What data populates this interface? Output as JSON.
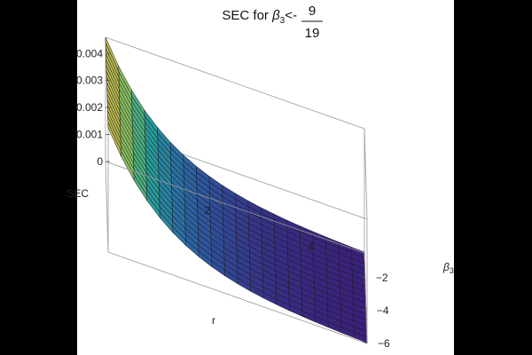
{
  "chart_data": {
    "type": "surface3d",
    "title": {
      "prefix": "SEC for ",
      "symbol": "β",
      "subscript": "3",
      "relation": "<-",
      "numerator": "9",
      "denominator": "19"
    },
    "z_axis": {
      "label": "SEC",
      "range": [
        0,
        0.0046
      ],
      "ticks": [
        "0",
        "0.001",
        "0.002",
        "0.003",
        "0.004"
      ]
    },
    "x_axis": {
      "label": "r",
      "range": [
        0,
        5
      ],
      "ticks": [
        "2",
        "4"
      ]
    },
    "y_axis": {
      "label_symbol": "β",
      "label_subscript": "3",
      "range": [
        -6,
        -0.47
      ],
      "ticks": [
        "−2",
        "−4",
        "−6"
      ]
    },
    "surface_model": {
      "z_at_r0": 0.0046,
      "z_at_r5": 3e-05,
      "decay_rate": 0.85
    },
    "mesh": {
      "r_lines": 20,
      "beta_lines": 16
    },
    "colormap": [
      "#3b1f7a",
      "#2f4f9c",
      "#2877a4",
      "#28a39a",
      "#6fbf6a",
      "#b7c452",
      "#c8b24d"
    ],
    "style": {
      "background": "#000000",
      "plot_bg": "#ffffff",
      "box": "#9a9a9a"
    }
  }
}
